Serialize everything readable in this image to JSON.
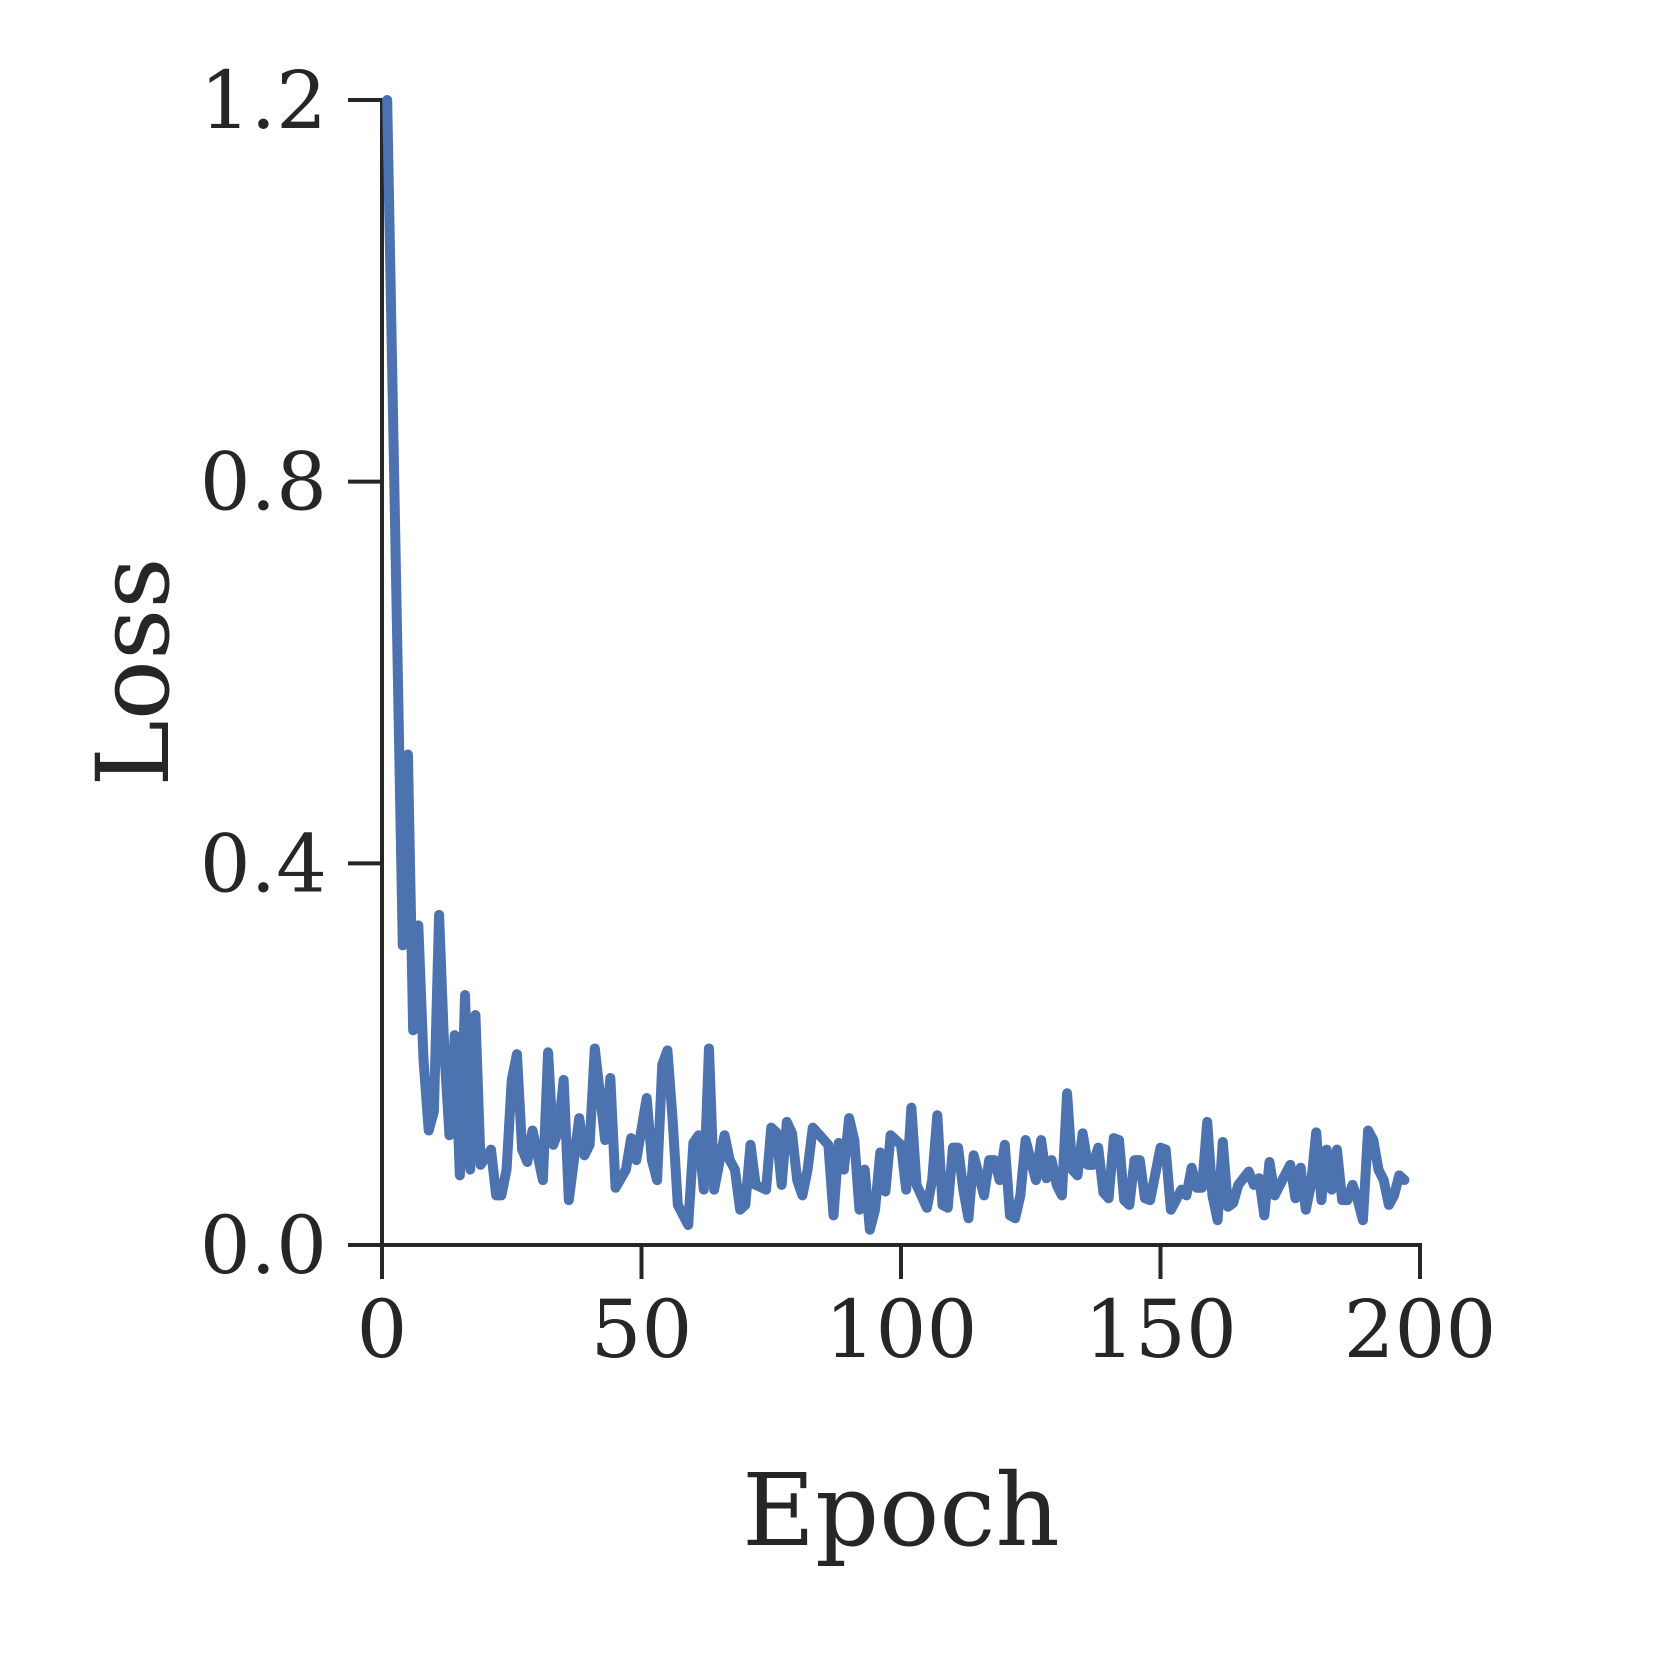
{
  "chart_data": {
    "type": "line",
    "x_label": "Epoch",
    "y_label": "Loss",
    "xlim": [
      0,
      200
    ],
    "xticks": [
      0,
      50,
      100,
      150,
      200
    ],
    "ylim": [
      0,
      1.2
    ],
    "yticks": [
      {
        "value": 0,
        "label": "0.0"
      },
      0.4,
      0.8,
      1.2
    ],
    "grid": false,
    "x": [
      1,
      3,
      4,
      5,
      6,
      7,
      8,
      9,
      10,
      11,
      12,
      13,
      14,
      15,
      16,
      17,
      18,
      19,
      21,
      22,
      23,
      24,
      25,
      26,
      27,
      28,
      29,
      31,
      32,
      33,
      34,
      35,
      36,
      38,
      39,
      40,
      41,
      43,
      44,
      45,
      47,
      48,
      49,
      51,
      52,
      53,
      54,
      55,
      56,
      57,
      59,
      60,
      61,
      62,
      63,
      64,
      66,
      67,
      68,
      69,
      70,
      71,
      72,
      74,
      75,
      76,
      77,
      78,
      79,
      80,
      81,
      82,
      83,
      84,
      86,
      87,
      88,
      89,
      90,
      91,
      92,
      93,
      94,
      95,
      96,
      97,
      98,
      100,
      101,
      102,
      103,
      105,
      106,
      107,
      108,
      109,
      110,
      111,
      112,
      113,
      114,
      116,
      117,
      118,
      119,
      120,
      121,
      122,
      123,
      124,
      126,
      127,
      128,
      129,
      130,
      131,
      132,
      133,
      134,
      135,
      136,
      137,
      138,
      139,
      140,
      141,
      142,
      143,
      144,
      145,
      146,
      147,
      148,
      150,
      151,
      152,
      153,
      154,
      155,
      156,
      157,
      158,
      159,
      160,
      161,
      162,
      163,
      164,
      165,
      166,
      167,
      168,
      169,
      170,
      171,
      172,
      173,
      175,
      176,
      177,
      178,
      179,
      180,
      181,
      182,
      183,
      184,
      185,
      186,
      187,
      188,
      189,
      190,
      191,
      192,
      193,
      194,
      195,
      196,
      197
    ],
    "series": [
      {
        "name": "Loss",
        "color": "#4c72b0",
        "values": [
          1.2,
          0.613,
          0.314,
          0.514,
          0.225,
          0.335,
          0.194,
          0.12,
          0.14,
          0.346,
          0.204,
          0.115,
          0.22,
          0.073,
          0.262,
          0.079,
          0.241,
          0.084,
          0.1,
          0.052,
          0.052,
          0.079,
          0.173,
          0.2,
          0.1,
          0.087,
          0.12,
          0.068,
          0.202,
          0.105,
          0.12,
          0.173,
          0.047,
          0.133,
          0.094,
          0.105,
          0.206,
          0.11,
          0.175,
          0.06,
          0.079,
          0.112,
          0.089,
          0.154,
          0.089,
          0.068,
          0.189,
          0.204,
          0.131,
          0.042,
          0.021,
          0.107,
          0.115,
          0.058,
          0.206,
          0.058,
          0.115,
          0.089,
          0.079,
          0.037,
          0.042,
          0.105,
          0.063,
          0.058,
          0.123,
          0.118,
          0.063,
          0.129,
          0.117,
          0.068,
          0.052,
          0.079,
          0.123,
          0.117,
          0.105,
          0.031,
          0.107,
          0.079,
          0.133,
          0.11,
          0.037,
          0.079,
          0.016,
          0.037,
          0.097,
          0.056,
          0.115,
          0.105,
          0.058,
          0.144,
          0.063,
          0.039,
          0.068,
          0.136,
          0.042,
          0.039,
          0.102,
          0.102,
          0.058,
          0.028,
          0.094,
          0.052,
          0.089,
          0.089,
          0.068,
          0.105,
          0.031,
          0.028,
          0.052,
          0.11,
          0.068,
          0.11,
          0.07,
          0.089,
          0.063,
          0.052,
          0.159,
          0.079,
          0.073,
          0.117,
          0.084,
          0.084,
          0.102,
          0.055,
          0.049,
          0.112,
          0.11,
          0.047,
          0.042,
          0.089,
          0.089,
          0.049,
          0.047,
          0.102,
          0.1,
          0.037,
          0.047,
          0.058,
          0.052,
          0.081,
          0.06,
          0.06,
          0.129,
          0.052,
          0.026,
          0.108,
          0.04,
          0.044,
          0.063,
          0.07,
          0.077,
          0.063,
          0.07,
          0.031,
          0.087,
          0.052,
          0.063,
          0.084,
          0.049,
          0.081,
          0.037,
          0.063,
          0.118,
          0.047,
          0.1,
          0.058,
          0.1,
          0.047,
          0.047,
          0.063,
          0.047,
          0.026,
          0.12,
          0.11,
          0.079,
          0.068,
          0.042,
          0.052,
          0.073,
          0.068
        ]
      }
    ]
  }
}
